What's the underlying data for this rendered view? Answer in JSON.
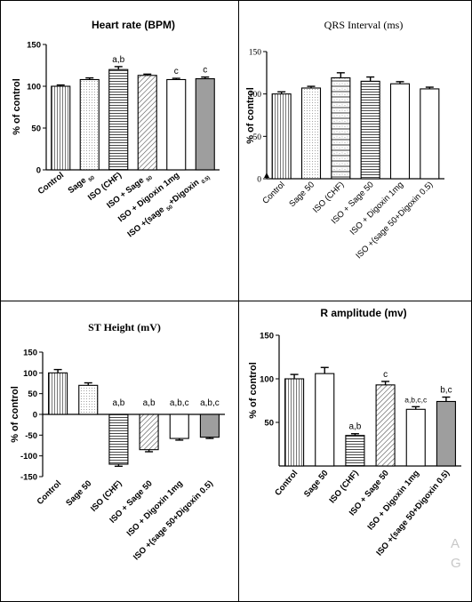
{
  "chart_data": [
    {
      "type": "bar",
      "title": "Heart rate (BPM)",
      "ylabel": "% of control",
      "ylim": [
        0,
        150
      ],
      "yticks": [
        0,
        50,
        100,
        150
      ],
      "categories": [
        "Control",
        "Sage 50",
        "ISO (CHF)",
        "ISO + Sage 50",
        "ISO + Digoxin 1mg",
        "ISO +(sage 50+Digoxin 0.5)"
      ],
      "tick_labels": [
        {
          "main": "Control",
          "sub": ""
        },
        {
          "main": "Sage ",
          "sub": "50"
        },
        {
          "main": "ISO (CHF)",
          "sub": ""
        },
        {
          "main": "ISO + Sage ",
          "sub": "50"
        },
        {
          "main": "ISO + Digoxin 1mg",
          "sub": ""
        },
        {
          "main": "ISO +(sage ",
          "sub": "50",
          "main2": "+Digoxin ",
          "sub2": "0.5)"
        }
      ],
      "values": [
        100,
        108,
        120,
        113,
        108,
        109
      ],
      "errors": [
        1.5,
        2,
        3.5,
        1.5,
        1.5,
        2
      ],
      "annotations": [
        "",
        "",
        "a,b",
        "",
        "c",
        "c"
      ],
      "fills": [
        "vlines",
        "dots",
        "hlines",
        "diag",
        "white",
        "gray"
      ]
    },
    {
      "type": "bar",
      "title": "QRS Interval (ms)",
      "ylabel": "% of control",
      "ylim": [
        0,
        150
      ],
      "yticks": [
        0,
        50,
        100,
        150
      ],
      "categories": [
        "Control",
        "Sage 50",
        "ISO (CHF)",
        "ISO + Sage 50",
        "ISO + Digoxin 1mg",
        "ISO +(sage 50+Digoxin 0.5)"
      ],
      "values": [
        100,
        107,
        119,
        115,
        112,
        106
      ],
      "errors": [
        2.5,
        2,
        6,
        5,
        2.5,
        2
      ],
      "annotations": [
        "",
        "",
        "",
        "",
        "",
        ""
      ],
      "fills": [
        "vlines",
        "dots",
        "hlinesdots",
        "hlines",
        "white",
        "white"
      ]
    },
    {
      "type": "bar",
      "title": "ST Height (mV)",
      "ylabel": "% of control",
      "ylim": [
        -150,
        150
      ],
      "yticks": [
        -150,
        -100,
        -50,
        0,
        50,
        100,
        150
      ],
      "categories": [
        "Control",
        "Sage 50",
        "ISO (CHF)",
        "ISO + Sage 50",
        "ISO + Digoxin 1mg",
        "ISO +(sage 50+Digoxin 0.5)"
      ],
      "values": [
        100,
        70,
        -120,
        -85,
        -58,
        -55
      ],
      "errors": [
        8,
        6,
        5,
        5,
        4,
        3
      ],
      "annotations": [
        "",
        "",
        "a,b",
        "a,b",
        "a,b,c",
        "a,b,c"
      ],
      "fills": [
        "vlines",
        "dots",
        "hlines",
        "diag",
        "white",
        "gray"
      ]
    },
    {
      "type": "bar",
      "title": "R amplitude (mv)",
      "ylabel": "% of control",
      "ylim": [
        0,
        150
      ],
      "yticks": [
        50,
        100,
        150
      ],
      "categories": [
        "Control",
        "Sage 50",
        "ISO (CHF)",
        "ISO + Sage 50",
        "ISO + Digoxin 1mg",
        "ISO +(sage 50+Digoxin 0.5)"
      ],
      "values": [
        100,
        106,
        35,
        93,
        65,
        74
      ],
      "errors": [
        5,
        7,
        2,
        4,
        3,
        5
      ],
      "annotations": [
        "",
        "",
        "a,b",
        "c",
        "a,b,c,c",
        "b,c"
      ],
      "fills": [
        "vlines",
        "white",
        "hlines",
        "diag",
        "white",
        "gray"
      ]
    }
  ],
  "watermark": [
    "A",
    "G"
  ]
}
